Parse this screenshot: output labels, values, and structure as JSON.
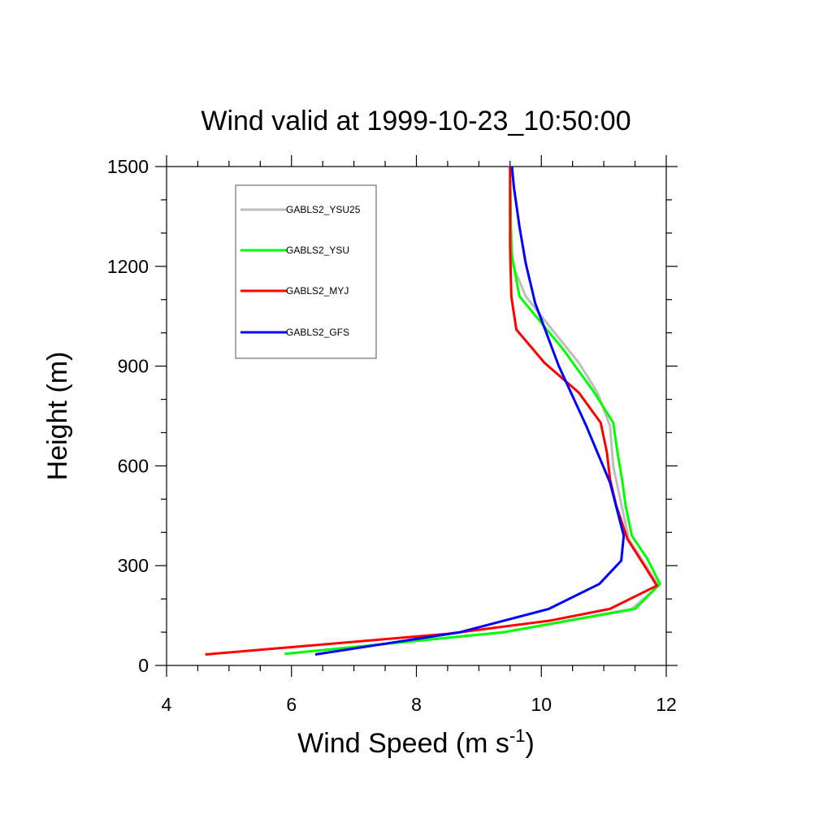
{
  "chart_data": {
    "type": "line",
    "title": "Wind valid at 1999-10-23_10:50:00",
    "xlabel": "Wind Speed (m s",
    "xlabel_superscript": "-1",
    "xlabel_suffix": ")",
    "ylabel": "Height (m)",
    "xlim": [
      4,
      12
    ],
    "ylim": [
      0,
      1500
    ],
    "x_ticks": [
      "4",
      "6",
      "8",
      "10",
      "12"
    ],
    "y_ticks": [
      "0",
      "300",
      "600",
      "900",
      "1200",
      "1500"
    ],
    "grid": false,
    "legend_position": "top-left",
    "series": [
      {
        "name": "GABLS2_YSU25",
        "color": "#bebebe",
        "x": [
          5.88,
          9.4,
          11.45,
          11.88,
          11.4,
          11.15,
          11.1,
          10.9,
          10.6,
          10.0,
          9.75,
          9.55,
          9.5,
          9.5
        ],
        "y": [
          35,
          100,
          170,
          240,
          380,
          600,
          720,
          820,
          910,
          1050,
          1110,
          1200,
          1350,
          1500
        ]
      },
      {
        "name": "GABLS2_YSU",
        "color": "#00ff00",
        "x": [
          5.9,
          9.4,
          11.5,
          11.9,
          11.7,
          11.45,
          11.35,
          11.3,
          11.22,
          11.15,
          10.85,
          10.35,
          9.65,
          9.52,
          9.5
        ],
        "y": [
          35,
          100,
          170,
          245,
          320,
          390,
          480,
          550,
          640,
          730,
          820,
          950,
          1110,
          1240,
          1500
        ]
      },
      {
        "name": "GABLS2_MYJ",
        "color": "#ff0000",
        "x": [
          4.62,
          8.5,
          10.15,
          11.1,
          11.85,
          11.65,
          11.38,
          11.2,
          11.1,
          11.05,
          10.95,
          10.6,
          10.05,
          9.6,
          9.52,
          9.5,
          9.5
        ],
        "y": [
          33,
          95,
          135,
          170,
          240,
          300,
          380,
          480,
          560,
          640,
          730,
          820,
          910,
          1010,
          1110,
          1260,
          1500
        ]
      },
      {
        "name": "GABLS2_GFS",
        "color": "#0000ff",
        "x": [
          6.38,
          8.7,
          10.12,
          10.93,
          11.28,
          11.32,
          11.1,
          10.72,
          10.28,
          9.9,
          9.75,
          9.65,
          9.56,
          9.53
        ],
        "y": [
          33,
          100,
          170,
          245,
          315,
          390,
          550,
          720,
          900,
          1090,
          1210,
          1320,
          1440,
          1500
        ]
      }
    ]
  }
}
